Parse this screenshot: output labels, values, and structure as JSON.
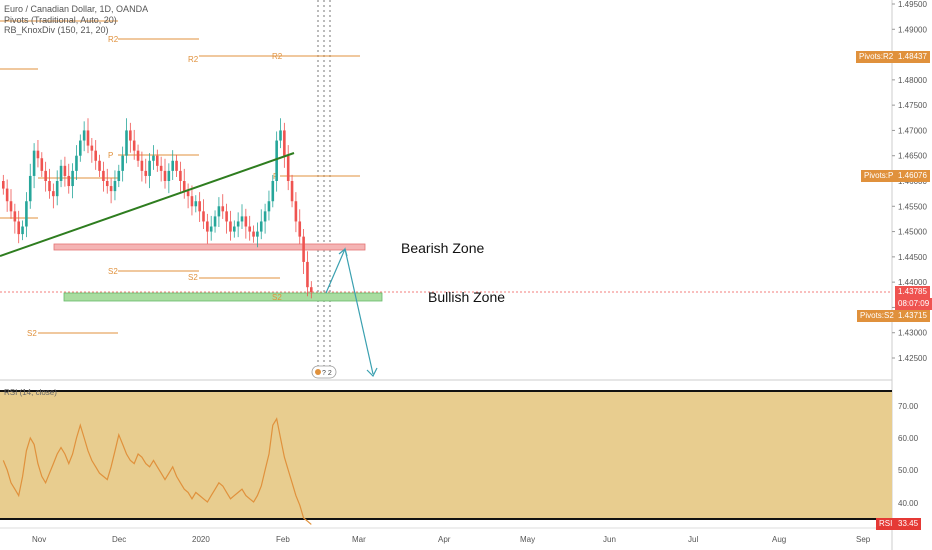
{
  "legend": {
    "line1": "Euro / Canadian Dollar, 1D, OANDA",
    "line2": "Pivots (Traditional, Auto, 20)",
    "line3": "RB_KnoxDiv (150, 21, 20)"
  },
  "annotations": {
    "bearish": "Bearish Zone",
    "bullish": "Bullish Zone"
  },
  "rsi": {
    "title": "RSI (14, close)",
    "badge_label": "RSI",
    "badge_value": "33.45",
    "ticks": [
      "70.00",
      "60.00",
      "50.00",
      "40.00"
    ]
  },
  "price_badges": {
    "r2_label": "Pivots:R2",
    "r2_value": "1.48437",
    "p_label": "Pivots:P",
    "p_value": "1.46076",
    "last_value": "1.43785",
    "countdown": "08:07:09",
    "s2_label": "Pivots:S2",
    "s2_value": "1.43715"
  },
  "colors": {
    "up": "#26a69a",
    "down": "#ef5350",
    "pivot": "#e0913c",
    "trendline": "#2e7d1f",
    "bearish_zone": "#f4b4b4",
    "bullish_zone": "#a9dca0",
    "rsi_bg": "#e8cd8f",
    "rsi_line": "#e0913c",
    "arrow": "#3aa0b0"
  },
  "chart_data": {
    "type": "candlestick",
    "title": "Euro / Canadian Dollar, 1D, OANDA",
    "y_ticks": [
      "1.49500",
      "1.49000",
      "1.48500",
      "1.48000",
      "1.47500",
      "1.47000",
      "1.46500",
      "1.46000",
      "1.45500",
      "1.45000",
      "1.44500",
      "1.44000",
      "1.43500",
      "1.43000",
      "1.42500"
    ],
    "x_ticks": [
      "Nov",
      "Dec",
      "2020",
      "Feb",
      "Mar",
      "Apr",
      "May",
      "Jun",
      "Jul",
      "Aug",
      "Sep"
    ],
    "pivot_labels": [
      "R2",
      "R2",
      "R2",
      "P",
      "P",
      "S2",
      "S2",
      "S2",
      "S2"
    ],
    "closes": [
      1.4585,
      1.456,
      1.454,
      1.452,
      1.4495,
      1.451,
      1.456,
      1.461,
      1.466,
      1.4645,
      1.462,
      1.46,
      1.458,
      1.457,
      1.46,
      1.463,
      1.461,
      1.459,
      1.462,
      1.465,
      1.468,
      1.47,
      1.467,
      1.466,
      1.464,
      1.462,
      1.46,
      1.459,
      1.458,
      1.46,
      1.462,
      1.465,
      1.47,
      1.468,
      1.466,
      1.464,
      1.462,
      1.461,
      1.464,
      1.465,
      1.463,
      1.462,
      1.46,
      1.462,
      1.464,
      1.462,
      1.46,
      1.458,
      1.457,
      1.455,
      1.456,
      1.454,
      1.452,
      1.45,
      1.451,
      1.453,
      1.455,
      1.454,
      1.452,
      1.45,
      1.451,
      1.452,
      1.453,
      1.451,
      1.45,
      1.449,
      1.45,
      1.452,
      1.454,
      1.456,
      1.46,
      1.468,
      1.47,
      1.465,
      1.46,
      1.456,
      1.452,
      1.449,
      1.444,
      1.439,
      1.438
    ],
    "rsi_values": [
      53,
      50,
      46,
      44,
      42,
      48,
      56,
      60,
      58,
      52,
      48,
      46,
      49,
      52,
      55,
      57,
      55,
      52,
      55,
      60,
      64,
      60,
      56,
      53,
      51,
      49,
      48,
      47,
      51,
      56,
      61,
      58,
      55,
      53,
      52,
      55,
      54,
      52,
      51,
      53,
      51,
      49,
      47,
      49,
      51,
      48,
      46,
      44,
      43,
      41,
      43,
      42,
      41,
      40,
      42,
      44,
      46,
      45,
      43,
      41,
      42,
      43,
      44,
      42,
      41,
      40,
      42,
      45,
      50,
      55,
      64,
      66,
      60,
      54,
      50,
      46,
      42,
      39,
      35,
      34,
      33
    ]
  }
}
